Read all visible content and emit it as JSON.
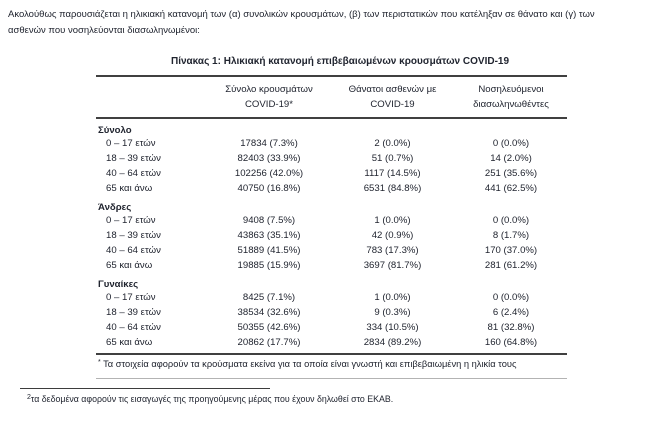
{
  "intro": {
    "lines": [
      "Ακολούθως παρουσιάζεται η ηλικιακή κατανομή των (α) συνολικών κρουσμάτων, (β) των περιστατικών που κατέληξαν σε θάνατο και (γ) των",
      "ασθενών που νοσηλεύονται διασωληνωμένοι:"
    ]
  },
  "table": {
    "title": "Πίνακας 1: Ηλικιακή κατανομή επιβεβαιωμένων κρουσμάτων COVID-19",
    "columns": [
      "Σύνολο κρουσμάτων COVID-19*",
      "Θάνατοι ασθενών με COVID-19",
      "Νοσηλευόμενοι διασωληνωθέντες"
    ],
    "groups": [
      {
        "label": "Σύνολο",
        "rows": [
          {
            "label": "0 – 17 ετών",
            "cases": "17834 (7.3%)",
            "deaths": "2 (0.0%)",
            "intubated": "0 (0.0%)"
          },
          {
            "label": "18 – 39 ετών",
            "cases": "82403 (33.9%)",
            "deaths": "51 (0.7%)",
            "intubated": "14 (2.0%)"
          },
          {
            "label": "40 – 64 ετών",
            "cases": "102256 (42.0%)",
            "deaths": "1117 (14.5%)",
            "intubated": "251 (35.6%)"
          },
          {
            "label": "65 και άνω",
            "cases": "40750 (16.8%)",
            "deaths": "6531 (84.8%)",
            "intubated": "441 (62.5%)"
          }
        ]
      },
      {
        "label": "Άνδρες",
        "rows": [
          {
            "label": "0 – 17 ετών",
            "cases": "9408 (7.5%)",
            "deaths": "1 (0.0%)",
            "intubated": "0 (0.0%)"
          },
          {
            "label": "18 – 39 ετών",
            "cases": "43863 (35.1%)",
            "deaths": "42 (0.9%)",
            "intubated": "8 (1.7%)"
          },
          {
            "label": "40 – 64 ετών",
            "cases": "51889 (41.5%)",
            "deaths": "783 (17.3%)",
            "intubated": "170 (37.0%)"
          },
          {
            "label": "65 και άνω",
            "cases": "19885 (15.9%)",
            "deaths": "3697 (81.7%)",
            "intubated": "281 (61.2%)"
          }
        ]
      },
      {
        "label": "Γυναίκες",
        "rows": [
          {
            "label": "0 – 17 ετών",
            "cases": "8425 (7.1%)",
            "deaths": "1 (0.0%)",
            "intubated": "0 (0.0%)"
          },
          {
            "label": "18 – 39 ετών",
            "cases": "38534 (32.6%)",
            "deaths": "9 (0.3%)",
            "intubated": "6 (2.4%)"
          },
          {
            "label": "40 – 64 ετών",
            "cases": "50355 (42.6%)",
            "deaths": "334 (10.5%)",
            "intubated": "81 (32.8%)"
          },
          {
            "label": "65 και άνω",
            "cases": "20862 (17.7%)",
            "deaths": "2834 (89.2%)",
            "intubated": "160 (64.8%)"
          }
        ]
      }
    ],
    "footnote": {
      "marker": "*",
      "text": " Τα στοιχεία αφορούν τα κρούσματα εκείνα για τα οποία είναι γνωστή και επιβεβαιωμένη η ηλικία τους"
    }
  },
  "page_footnote": {
    "marker": "2",
    "text": "τα δεδομένα αφορούν τις εισαγωγές της προηγούμενης μέρας που έχουν δηλωθεί στο ΕΚΑΒ."
  },
  "colors": {
    "text": "#212530",
    "table_border": "#404040",
    "footnote_rule": "#b3b3b3"
  }
}
